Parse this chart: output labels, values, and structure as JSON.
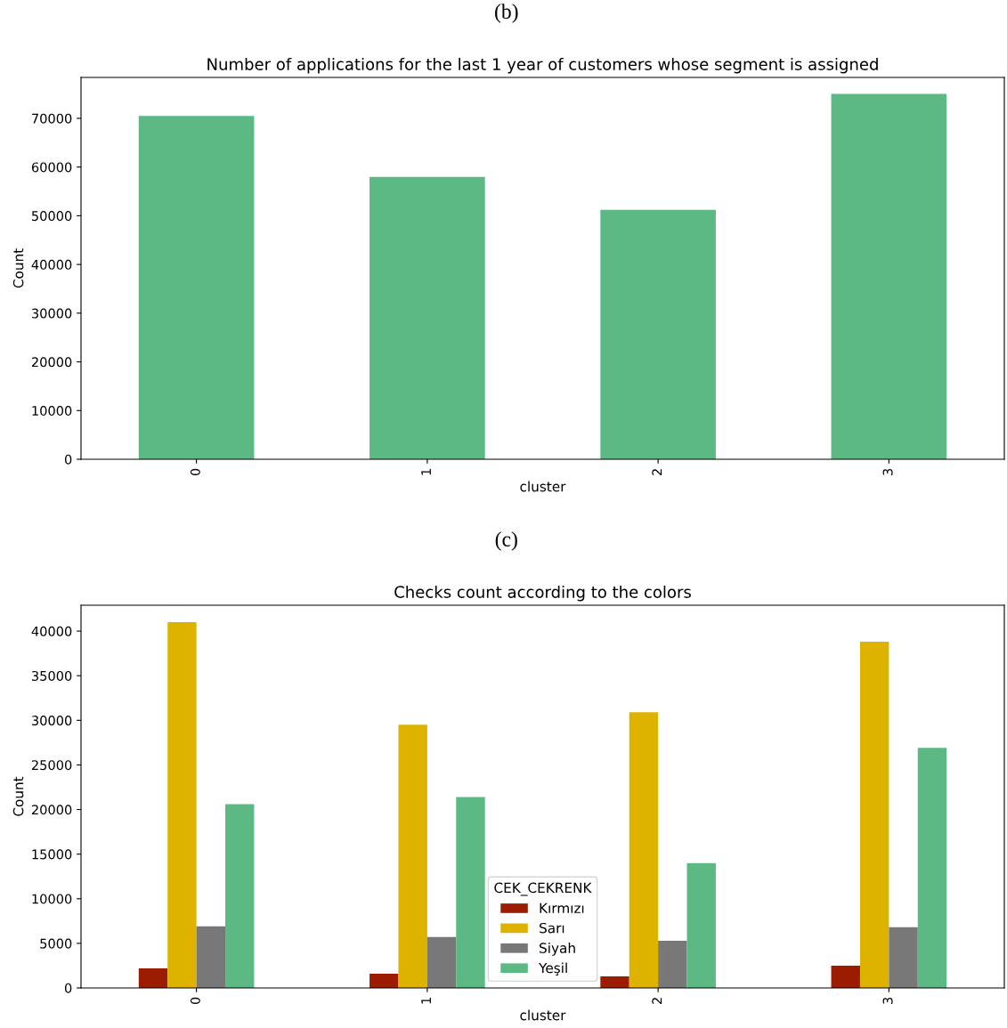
{
  "chart_data": [
    {
      "type": "bar",
      "title": "Number of applications for the last 1 year of customers whose segment is assigned",
      "annotations": [
        "(b)"
      ],
      "xlabel": "cluster",
      "ylabel": "Count",
      "categories": [
        "0",
        "1",
        "2",
        "3"
      ],
      "series": [
        {
          "color": "#5cb983",
          "values": [
            70500,
            58000,
            51200,
            75000
          ]
        }
      ],
      "ylim": [
        0,
        78400
      ],
      "yticks": [
        0,
        10000,
        20000,
        30000,
        40000,
        50000,
        60000,
        70000
      ],
      "grid": false,
      "legend": false
    },
    {
      "type": "bar",
      "title": "Checks count according to the colors",
      "annotations": [
        "(c)"
      ],
      "xlabel": "cluster",
      "ylabel": "Count",
      "categories": [
        "0",
        "1",
        "2",
        "3"
      ],
      "legend_title": "CEK_CEKRENK",
      "series": [
        {
          "name": "Kırmızı",
          "color": "#9b1c00",
          "values": [
            2200,
            1600,
            1300,
            2500
          ]
        },
        {
          "name": "Sarı",
          "color": "#ddb300",
          "values": [
            41000,
            29500,
            30900,
            38800
          ]
        },
        {
          "name": "Siyah",
          "color": "#787878",
          "values": [
            6900,
            5700,
            5300,
            6800
          ]
        },
        {
          "name": "Yeşil",
          "color": "#5cb983",
          "values": [
            20600,
            21400,
            14000,
            26900
          ]
        }
      ],
      "ylim": [
        0,
        42900
      ],
      "yticks": [
        0,
        5000,
        10000,
        15000,
        20000,
        25000,
        30000,
        35000,
        40000
      ],
      "grid": false,
      "legend": "bottom"
    }
  ]
}
